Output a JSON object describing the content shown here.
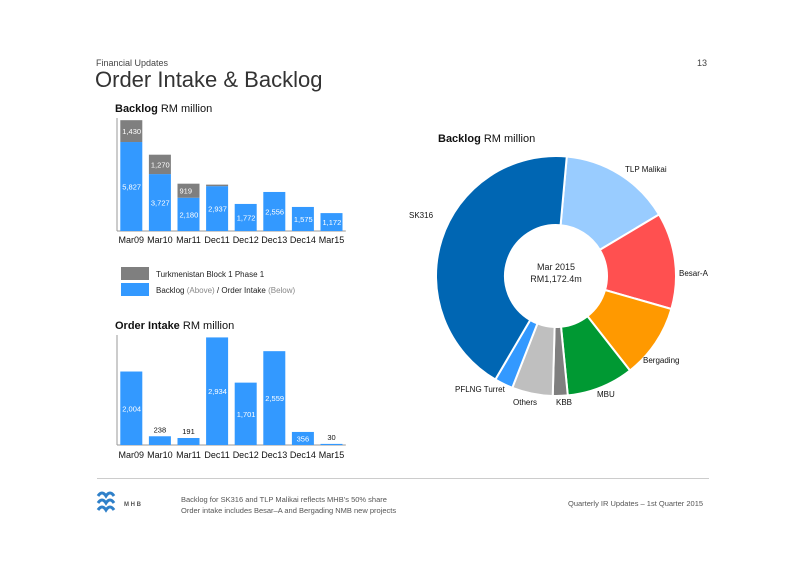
{
  "header": {
    "section": "Financial Updates",
    "page_number": "13",
    "title": "Order Intake & Backlog"
  },
  "logo": {
    "text": "M H B"
  },
  "legend": {
    "turkmenistan": "Turkmenistan Block 1 Phase 1",
    "backlog_prefix": "Backlog ",
    "backlog_above": "(Above)",
    "separator": " / Order Intake ",
    "backlog_below": "(Below)"
  },
  "footer": {
    "note1": "Backlog for SK316 and TLP Malikai reflects MHB’s 50% share",
    "note2": "Order intake includes Besar–A and Bergading NMB new projects",
    "right": "Quarterly IR Updates – 1st Quarter 2015"
  },
  "colors": {
    "blue": "#3399ff",
    "gray": "#7f7f7f"
  },
  "chart_data": [
    {
      "id": "backlog",
      "type": "bar",
      "stacked": true,
      "title_bold": "Backlog",
      "title_unit": " RM million",
      "categories": [
        "Mar09",
        "Mar10",
        "Mar11",
        "Dec11",
        "Dec12",
        "Dec13",
        "Dec14",
        "Mar15"
      ],
      "series": [
        {
          "name": "Backlog",
          "color": "#3399ff",
          "values": [
            5827,
            3727,
            2180,
            2937,
            1772,
            2556,
            1575,
            1172
          ],
          "labels": [
            "5,827",
            "3,727",
            "2,180",
            "2,937",
            "1,772",
            "2,556",
            "1,575",
            "1,172"
          ]
        },
        {
          "name": "Turkmenistan Block 1 Phase 1",
          "color": "#7f7f7f",
          "values": [
            1430,
            1270,
            919,
            100,
            0,
            0,
            0,
            0
          ],
          "labels": [
            "1,430",
            "1,270",
            "919",
            "",
            "",
            "",
            "",
            ""
          ]
        }
      ]
    },
    {
      "id": "order_intake",
      "type": "bar",
      "title_bold": "Order Intake",
      "title_unit": " RM million",
      "categories": [
        "Mar09",
        "Mar10",
        "Mar11",
        "Dec11",
        "Dec12",
        "Dec13",
        "Dec14",
        "Mar15"
      ],
      "values": [
        2004,
        238,
        191,
        2934,
        1701,
        2559,
        356,
        30
      ],
      "labels": [
        "2,004",
        "238",
        "191",
        "2,934",
        "1,701",
        "2,559",
        "356",
        "30"
      ],
      "color": "#3399ff"
    },
    {
      "id": "backlog_breakdown",
      "type": "pie",
      "donut": true,
      "title_bold": "Backlog",
      "title_unit": " RM million",
      "center_line1": "Mar 2015",
      "center_line2": "RM1,172.4m",
      "slices": [
        {
          "label": "TLP Malikai",
          "value": 15,
          "color": "#99ccff"
        },
        {
          "label": "Besar-A",
          "value": 13,
          "color": "#ff5050"
        },
        {
          "label": "Bergading",
          "value": 10,
          "color": "#ff9900"
        },
        {
          "label": "MBU",
          "value": 9,
          "color": "#009933"
        },
        {
          "label": "KBB",
          "value": 2,
          "color": "#7f7f7f"
        },
        {
          "label": "Others",
          "value": 5.5,
          "color": "#bfbfbf"
        },
        {
          "label": "PFLNG Turret",
          "value": 2.5,
          "color": "#3399ff"
        },
        {
          "label": "SK316",
          "value": 43,
          "color": "#0066b3"
        }
      ]
    }
  ]
}
